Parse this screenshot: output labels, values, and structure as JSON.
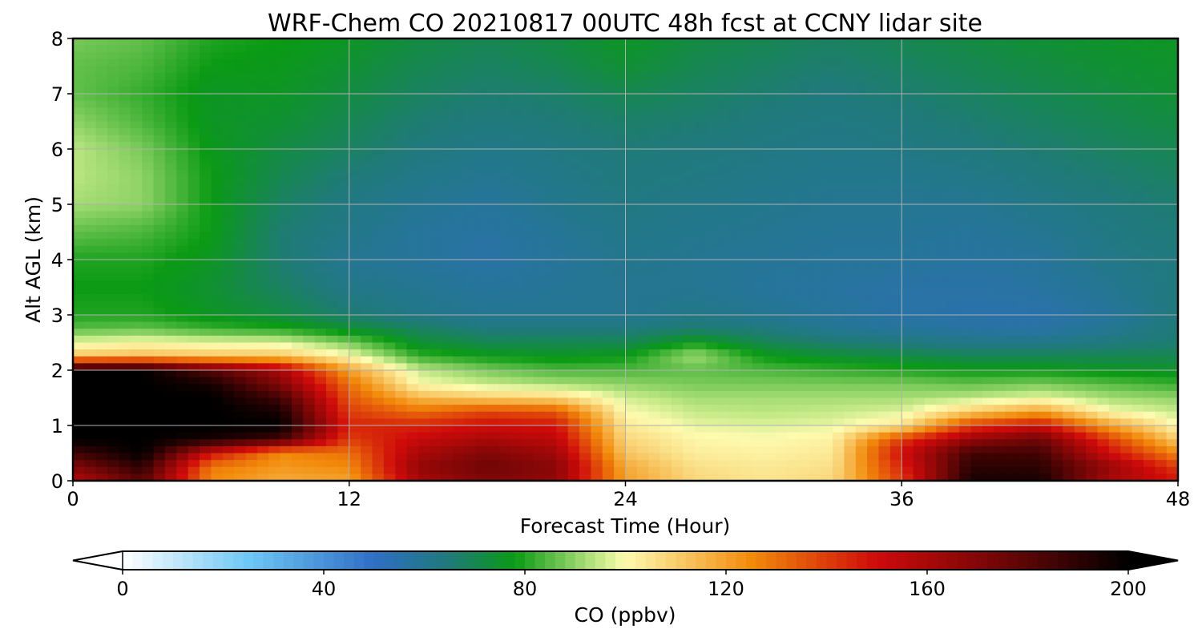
{
  "chart_data": {
    "type": "heatmap",
    "title": "WRF-Chem CO  20210817 00UTC 48h fcst at CCNY lidar site",
    "xlabel": "Forecast Time (Hour)",
    "ylabel": "Alt AGL (km)",
    "xlim": [
      0,
      48
    ],
    "ylim": [
      0,
      8
    ],
    "x_ticks": [
      "0",
      "12",
      "24",
      "36",
      "48"
    ],
    "y_ticks": [
      "0",
      "1",
      "2",
      "3",
      "4",
      "5",
      "6",
      "7",
      "8"
    ],
    "grid": true,
    "colorbar": {
      "label": "CO  (ppbv)",
      "range": [
        0,
        200
      ],
      "ticks": [
        "0",
        "40",
        "80",
        "120",
        "160",
        "200"
      ],
      "extend": "both",
      "colors": [
        {
          "value": 0,
          "color": "#ffffff"
        },
        {
          "value": 25,
          "color": "#6ec7f5"
        },
        {
          "value": 50,
          "color": "#2f6ec4"
        },
        {
          "value": 65,
          "color": "#1f7a78"
        },
        {
          "value": 78,
          "color": "#0a9a14"
        },
        {
          "value": 95,
          "color": "#c6ea88"
        },
        {
          "value": 100,
          "color": "#fdfbb0"
        },
        {
          "value": 125,
          "color": "#f28a0a"
        },
        {
          "value": 150,
          "color": "#cf0a0a"
        },
        {
          "value": 175,
          "color": "#6e0606"
        },
        {
          "value": 200,
          "color": "#000000"
        }
      ]
    },
    "hours": [
      0,
      3,
      6,
      9,
      12,
      15,
      18,
      21,
      24,
      27,
      30,
      33,
      36,
      39,
      42,
      45,
      48
    ],
    "altitudes_km": [
      0,
      0.25,
      0.5,
      0.75,
      1,
      1.25,
      1.5,
      1.75,
      2,
      2.25,
      2.5,
      2.75,
      3,
      3.5,
      4,
      4.5,
      5,
      5.5,
      6,
      6.5,
      7,
      7.5,
      8
    ],
    "co_ppbv": [
      [
        155,
        180,
        125,
        118,
        120,
        160,
        170,
        165,
        120,
        108,
        105,
        108,
        140,
        195,
        195,
        160,
        148
      ],
      [
        170,
        190,
        128,
        122,
        125,
        165,
        175,
        168,
        118,
        106,
        104,
        106,
        145,
        190,
        190,
        165,
        140
      ],
      [
        185,
        200,
        150,
        125,
        130,
        160,
        170,
        162,
        112,
        103,
        102,
        104,
        150,
        185,
        185,
        150,
        125
      ],
      [
        200,
        200,
        195,
        185,
        140,
        152,
        160,
        155,
        108,
        101,
        100,
        102,
        140,
        165,
        175,
        140,
        110
      ],
      [
        200,
        200,
        200,
        200,
        145,
        145,
        150,
        148,
        104,
        98,
        97,
        98,
        105,
        140,
        150,
        120,
        100
      ],
      [
        200,
        200,
        200,
        195,
        140,
        130,
        138,
        135,
        100,
        95,
        94,
        95,
        97,
        110,
        120,
        100,
        95
      ],
      [
        200,
        200,
        200,
        185,
        135,
        115,
        110,
        108,
        96,
        92,
        92,
        92,
        92,
        94,
        98,
        92,
        90
      ],
      [
        200,
        200,
        195,
        170,
        130,
        100,
        95,
        92,
        90,
        88,
        88,
        88,
        88,
        86,
        88,
        85,
        82
      ],
      [
        200,
        200,
        180,
        160,
        120,
        95,
        88,
        84,
        84,
        86,
        84,
        82,
        80,
        78,
        78,
        76,
        75
      ],
      [
        112,
        114,
        112,
        112,
        100,
        82,
        78,
        76,
        78,
        92,
        78,
        74,
        72,
        70,
        70,
        70,
        70
      ],
      [
        98,
        100,
        98,
        97,
        88,
        74,
        70,
        70,
        70,
        78,
        70,
        66,
        64,
        62,
        62,
        64,
        66
      ],
      [
        85,
        86,
        82,
        80,
        74,
        68,
        64,
        64,
        64,
        66,
        64,
        60,
        58,
        57,
        56,
        60,
        65
      ],
      [
        80,
        80,
        76,
        72,
        66,
        62,
        60,
        60,
        60,
        62,
        60,
        58,
        56,
        55,
        55,
        58,
        64
      ],
      [
        78,
        78,
        74,
        68,
        62,
        60,
        58,
        59,
        60,
        60,
        58,
        57,
        56,
        56,
        57,
        60,
        64
      ],
      [
        80,
        80,
        76,
        66,
        60,
        58,
        56,
        58,
        61,
        60,
        59,
        58,
        58,
        57,
        58,
        62,
        64
      ],
      [
        86,
        84,
        78,
        66,
        62,
        58,
        57,
        59,
        62,
        61,
        60,
        59,
        59,
        58,
        60,
        63,
        65
      ],
      [
        92,
        90,
        78,
        68,
        63,
        60,
        58,
        61,
        63,
        62,
        61,
        60,
        60,
        60,
        62,
        64,
        66
      ],
      [
        94,
        90,
        78,
        70,
        65,
        62,
        60,
        62,
        64,
        63,
        62,
        61,
        61,
        62,
        64,
        66,
        68
      ],
      [
        94,
        88,
        77,
        72,
        68,
        64,
        62,
        63,
        65,
        64,
        63,
        62,
        63,
        64,
        66,
        68,
        70
      ],
      [
        90,
        84,
        76,
        74,
        70,
        66,
        64,
        65,
        67,
        66,
        64,
        63,
        64,
        66,
        68,
        70,
        72
      ],
      [
        86,
        82,
        76,
        76,
        72,
        68,
        66,
        67,
        70,
        68,
        66,
        64,
        66,
        68,
        70,
        72,
        74
      ],
      [
        86,
        84,
        78,
        77,
        74,
        70,
        68,
        70,
        74,
        70,
        68,
        66,
        68,
        70,
        72,
        74,
        75
      ],
      [
        88,
        86,
        80,
        78,
        76,
        72,
        70,
        72,
        76,
        72,
        70,
        68,
        70,
        72,
        74,
        75,
        76
      ]
    ]
  }
}
